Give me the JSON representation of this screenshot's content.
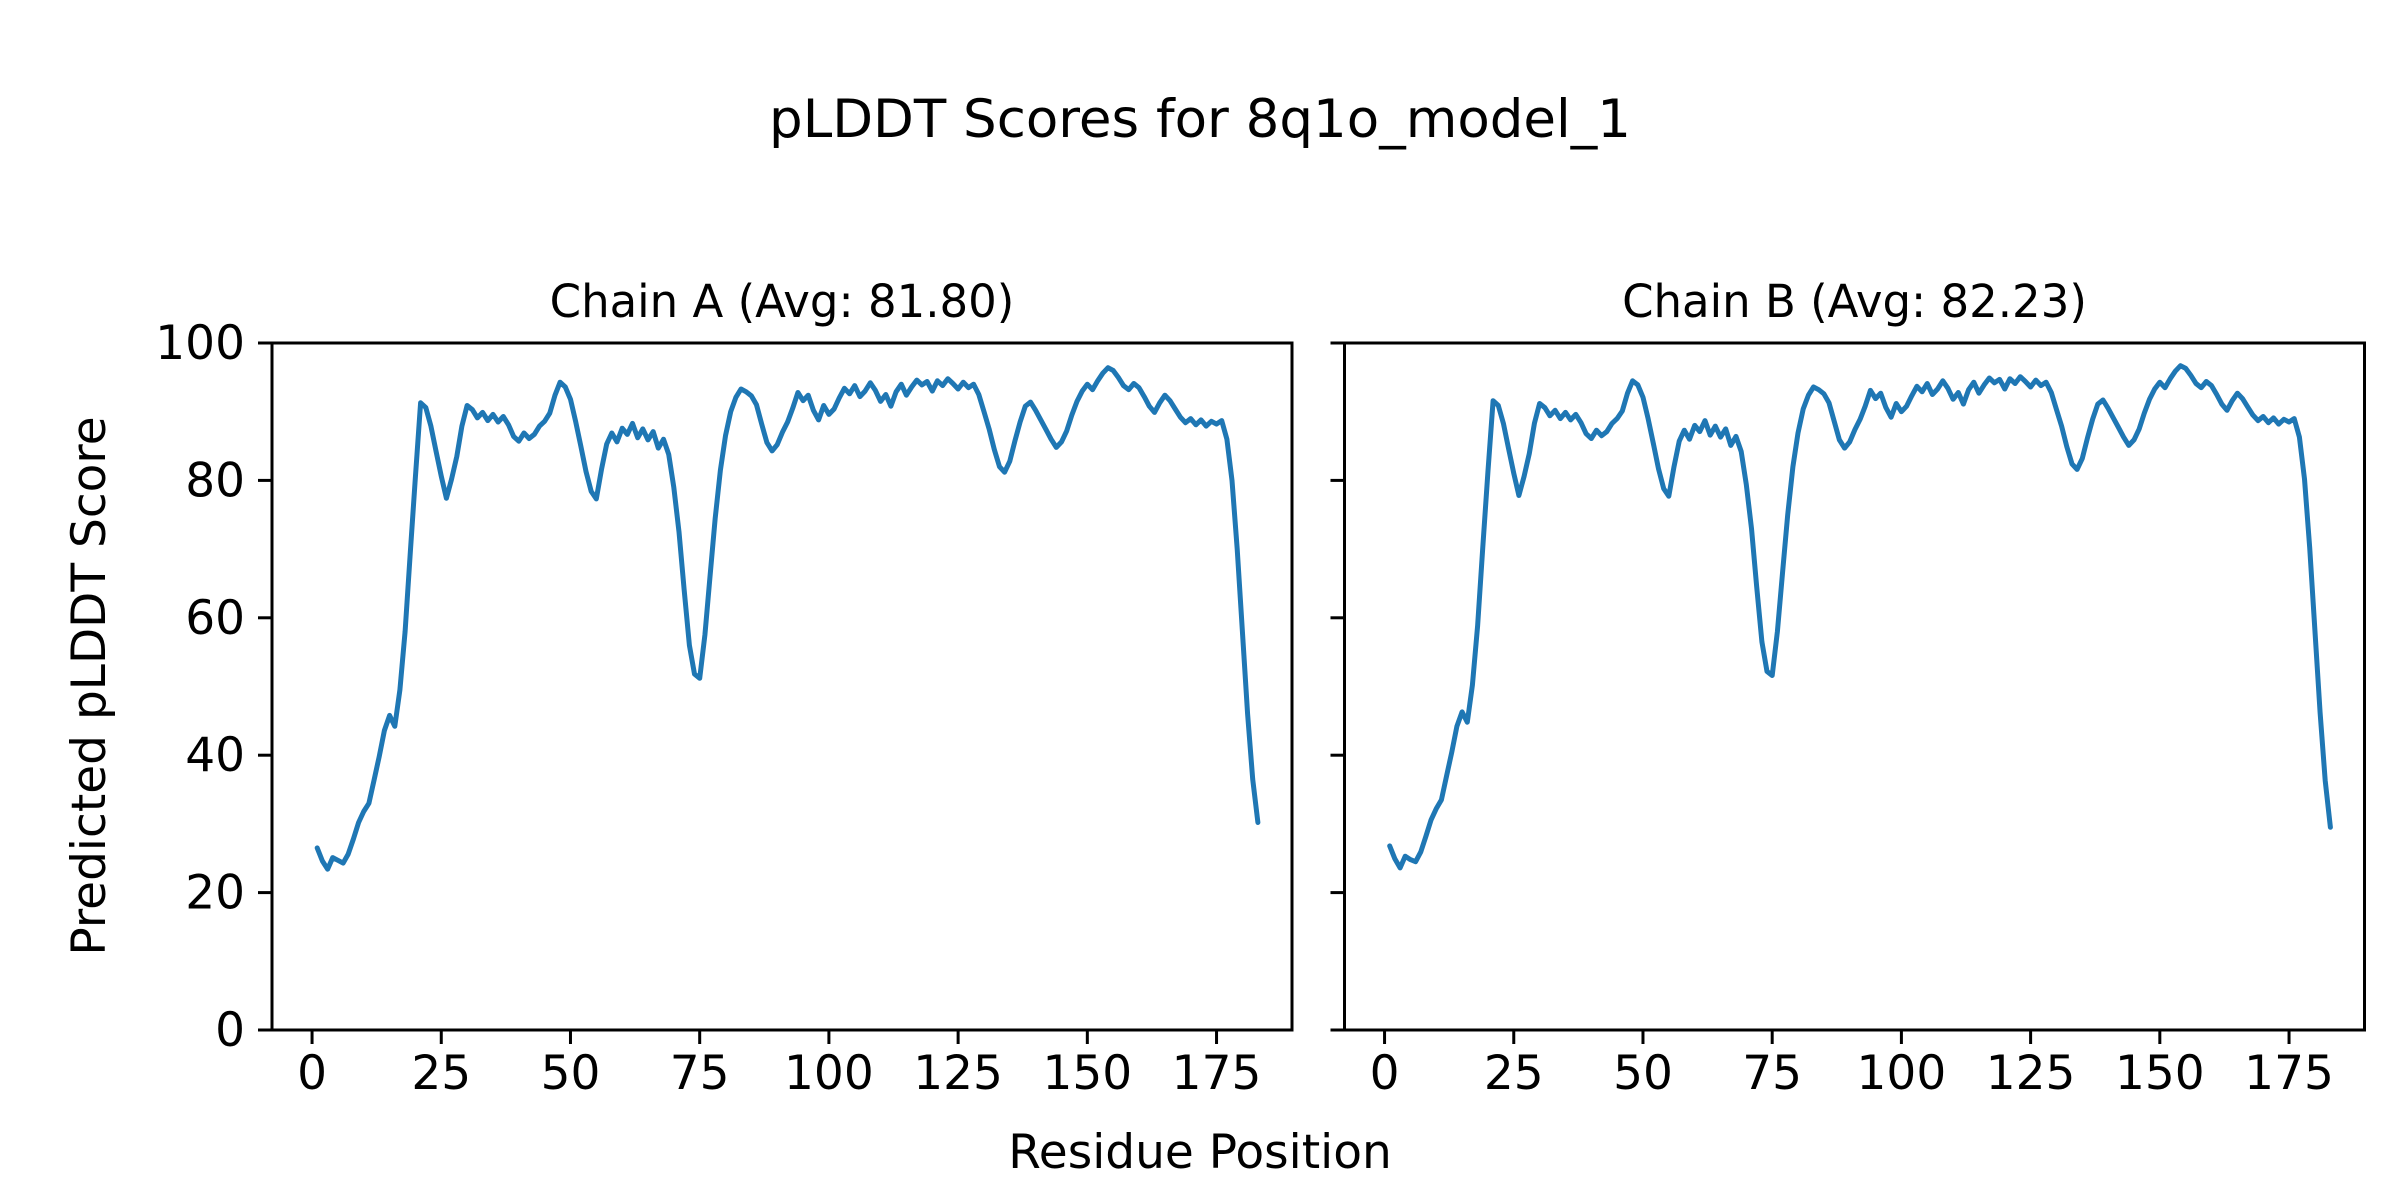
{
  "figure": {
    "suptitle": "pLDDT Scores for 8q1o_model_1",
    "xlabel": "Residue Position",
    "ylabel": "Predicted pLDDT Score",
    "background_color": "#ffffff",
    "text_color": "#000000",
    "spine_color": "#000000"
  },
  "chart_data": [
    {
      "type": "line",
      "title": "Chain A (Avg: 81.80)",
      "chain": "A",
      "avg_label": "81.80",
      "line_color": "#1f77b4",
      "x_start": 1,
      "x_ticks": [
        0,
        25,
        50,
        75,
        100,
        125,
        150,
        175
      ],
      "y_ticks": [
        0,
        20,
        40,
        60,
        80,
        100
      ],
      "y_tick_labels_visible": true,
      "xlim": [
        -7.75,
        189.6
      ],
      "ylim": [
        0,
        100
      ],
      "grid": false,
      "legend": "none",
      "values": [
        26.5,
        24.6,
        23.4,
        25.1,
        24.7,
        24.3,
        25.6,
        27.8,
        30.2,
        31.8,
        33.0,
        36.4,
        39.8,
        43.6,
        45.8,
        44.2,
        49.5,
        58.0,
        69.5,
        80.5,
        91.3,
        90.6,
        87.9,
        84.2,
        80.6,
        77.4,
        80.2,
        83.5,
        87.9,
        90.9,
        90.3,
        89.1,
        89.9,
        88.7,
        89.6,
        88.5,
        89.3,
        88.1,
        86.4,
        85.7,
        86.9,
        86.1,
        86.7,
        87.9,
        88.6,
        89.8,
        92.4,
        94.3,
        93.6,
        91.8,
        88.6,
        85.0,
        81.3,
        78.4,
        77.3,
        81.6,
        85.3,
        86.9,
        85.6,
        87.6,
        86.7,
        88.3,
        86.2,
        87.5,
        85.9,
        87.1,
        84.7,
        86.0,
        83.8,
        79.0,
        72.5,
        64.0,
        56.0,
        51.8,
        51.2,
        57.5,
        66.0,
        74.5,
        81.5,
        86.5,
        90.0,
        92.1,
        93.3,
        92.9,
        92.3,
        91.0,
        88.2,
        85.5,
        84.3,
        85.2,
        87.0,
        88.5,
        90.5,
        92.8,
        91.6,
        92.4,
        90.2,
        88.8,
        90.9,
        89.6,
        90.4,
        92.0,
        93.4,
        92.6,
        93.8,
        92.2,
        93.0,
        94.2,
        93.1,
        91.5,
        92.5,
        90.8,
        92.9,
        94.0,
        92.4,
        93.6,
        94.6,
        93.9,
        94.4,
        93.0,
        94.5,
        93.8,
        94.8,
        94.1,
        93.3,
        94.3,
        93.5,
        94.0,
        92.5,
        90.0,
        87.5,
        84.5,
        82.0,
        81.2,
        82.8,
        85.8,
        88.5,
        90.8,
        91.4,
        90.2,
        88.8,
        87.4,
        86.0,
        84.8,
        85.6,
        87.2,
        89.5,
        91.5,
        93.0,
        94.0,
        93.2,
        94.5,
        95.6,
        96.4,
        96.0,
        95.0,
        93.8,
        93.2,
        94.1,
        93.5,
        92.2,
        90.8,
        89.9,
        91.3,
        92.4,
        91.6,
        90.4,
        89.2,
        88.4,
        89.0,
        88.1,
        88.8,
        87.9,
        88.6,
        88.2,
        88.7,
        86.0,
        80.0,
        70.0,
        58.0,
        46.0,
        36.5,
        30.2
      ]
    },
    {
      "type": "line",
      "title": "Chain B (Avg: 82.23)",
      "chain": "B",
      "avg_label": "82.23",
      "line_color": "#1f77b4",
      "x_start": 1,
      "x_ticks": [
        0,
        25,
        50,
        75,
        100,
        125,
        150,
        175
      ],
      "y_ticks": [
        0,
        20,
        40,
        60,
        80,
        100
      ],
      "y_tick_labels_visible": false,
      "xlim": [
        -7.75,
        189.6
      ],
      "ylim": [
        0,
        100
      ],
      "grid": false,
      "legend": "none",
      "values": [
        26.8,
        24.9,
        23.6,
        25.3,
        24.8,
        24.5,
        25.9,
        28.2,
        30.6,
        32.2,
        33.5,
        37.0,
        40.4,
        44.2,
        46.3,
        44.8,
        50.2,
        58.8,
        70.3,
        81.2,
        91.6,
        90.9,
        88.3,
        84.6,
        81.0,
        77.8,
        80.6,
        83.9,
        88.3,
        91.2,
        90.6,
        89.4,
        90.2,
        89.0,
        89.9,
        88.8,
        89.6,
        88.4,
        86.8,
        86.1,
        87.3,
        86.5,
        87.1,
        88.3,
        89.0,
        90.1,
        92.7,
        94.5,
        93.9,
        92.1,
        89.0,
        85.4,
        81.7,
        78.8,
        77.7,
        82.0,
        85.7,
        87.3,
        86.0,
        88.0,
        87.1,
        88.7,
        86.6,
        87.9,
        86.3,
        87.5,
        85.1,
        86.4,
        84.2,
        79.4,
        73.0,
        64.5,
        56.5,
        52.2,
        51.6,
        58.0,
        66.5,
        75.0,
        82.0,
        86.9,
        90.4,
        92.4,
        93.6,
        93.2,
        92.6,
        91.3,
        88.6,
        85.9,
        84.7,
        85.6,
        87.4,
        88.9,
        90.8,
        93.1,
        91.9,
        92.7,
        90.6,
        89.2,
        91.2,
        90.0,
        90.8,
        92.3,
        93.7,
        92.9,
        94.1,
        92.5,
        93.3,
        94.5,
        93.4,
        91.8,
        92.8,
        91.1,
        93.2,
        94.3,
        92.7,
        93.9,
        94.9,
        94.2,
        94.7,
        93.3,
        94.8,
        94.1,
        95.1,
        94.4,
        93.6,
        94.6,
        93.8,
        94.3,
        92.8,
        90.3,
        87.9,
        84.9,
        82.4,
        81.6,
        83.2,
        86.2,
        88.9,
        91.1,
        91.7,
        90.5,
        89.1,
        87.7,
        86.3,
        85.1,
        85.9,
        87.5,
        89.8,
        91.8,
        93.3,
        94.3,
        93.5,
        94.8,
        95.9,
        96.7,
        96.3,
        95.3,
        94.1,
        93.5,
        94.4,
        93.8,
        92.5,
        91.1,
        90.2,
        91.6,
        92.7,
        91.9,
        90.7,
        89.5,
        88.7,
        89.3,
        88.4,
        89.1,
        88.2,
        88.9,
        88.5,
        89.0,
        86.3,
        80.2,
        70.2,
        58.2,
        46.2,
        36.3,
        29.5
      ]
    }
  ]
}
